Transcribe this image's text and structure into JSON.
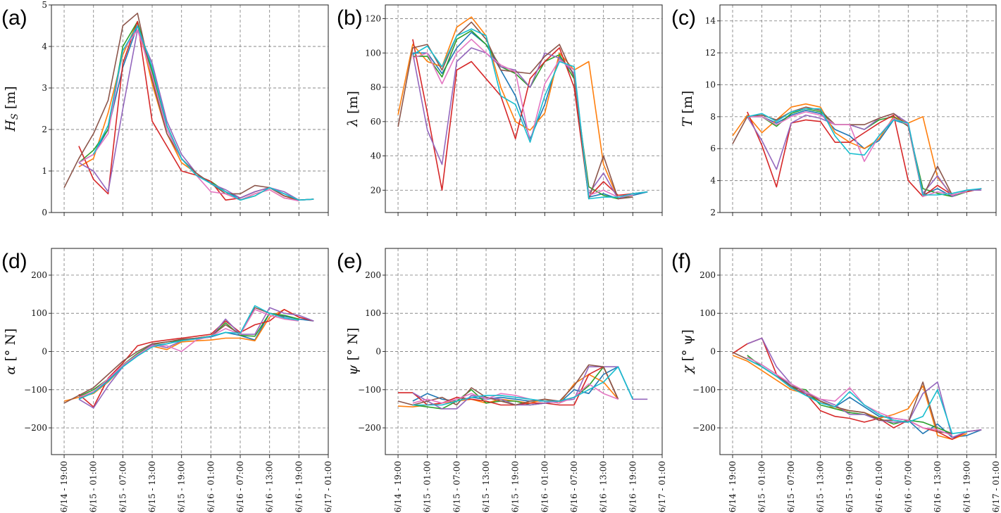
{
  "colors": [
    "#1f77b4",
    "#ff7f0e",
    "#2ca02c",
    "#d62728",
    "#9467bd",
    "#8c564b",
    "#e377c2",
    "#17becf"
  ],
  "x_tick_labels": [
    "06/14 - 19:00",
    "06/15 - 01:00",
    "06/15 - 07:00",
    "06/15 - 13:00",
    "06/15 - 19:00",
    "06/16 - 01:00",
    "06/16 - 07:00",
    "06/16 - 13:00",
    "06/16 - 19:00",
    "06/17 - 01:00"
  ],
  "chart_data": [
    {
      "letter": "(a)",
      "type": "line",
      "ylabel": {
        "sym": "H",
        "sub": "S",
        "unit": " [m]"
      },
      "ylim": [
        0,
        5
      ],
      "yticks": [
        0,
        1,
        2,
        3,
        4,
        5
      ],
      "xlim": [
        "06/14 16:24",
        "06/17 01:00"
      ],
      "grid": true,
      "x": [
        "06/14 19:00",
        "06/14 22:00",
        "06/15 01:00",
        "06/15 04:00",
        "06/15 07:00",
        "06/15 10:00",
        "06/15 13:00",
        "06/15 16:00",
        "06/15 19:00",
        "06/15 22:00",
        "06/16 01:00",
        "06/16 04:00",
        "06/16 07:00",
        "06/16 10:00",
        "06/16 13:00",
        "06/16 16:00",
        "06/16 19:00",
        "06/16 22:00"
      ],
      "series": [
        [
          null,
          1.2,
          1.4,
          2.0,
          3.5,
          4.5,
          3.3,
          2.0,
          1.3,
          0.9,
          0.7,
          0.5,
          0.35,
          0.5,
          0.6,
          0.45,
          0.3,
          null
        ],
        [
          null,
          1.1,
          1.3,
          2.4,
          3.8,
          4.6,
          3.1,
          1.9,
          1.2,
          0.95,
          0.7,
          0.45,
          0.3,
          0.45,
          0.55,
          0.35,
          0.3,
          null
        ],
        [
          null,
          1.2,
          1.5,
          2.0,
          4.0,
          4.6,
          3.4,
          2.1,
          1.3,
          0.9,
          0.75,
          0.5,
          0.3,
          0.4,
          0.6,
          0.4,
          0.3,
          0.32
        ],
        [
          null,
          1.6,
          0.8,
          0.45,
          3.6,
          4.6,
          2.2,
          1.6,
          1.0,
          0.9,
          0.75,
          0.3,
          0.35,
          0.5,
          0.6,
          0.4,
          0.3,
          0.32
        ],
        [
          null,
          1.2,
          1.0,
          0.5,
          2.5,
          4.4,
          3.6,
          2.2,
          1.4,
          0.95,
          0.7,
          0.55,
          0.35,
          0.5,
          0.6,
          0.5,
          0.3,
          0.32
        ],
        [
          0.6,
          1.3,
          1.9,
          2.7,
          4.5,
          4.8,
          3.2,
          1.9,
          1.3,
          0.95,
          0.7,
          0.45,
          0.45,
          0.65,
          0.6,
          0.4,
          0.3,
          null
        ],
        [
          null,
          1.2,
          1.4,
          1.9,
          3.9,
          4.4,
          3.3,
          2.0,
          1.3,
          0.9,
          0.5,
          0.45,
          0.3,
          0.45,
          0.55,
          0.35,
          0.28,
          null
        ],
        [
          null,
          null,
          1.4,
          2.1,
          3.9,
          4.5,
          3.5,
          2.1,
          1.3,
          0.9,
          0.7,
          0.5,
          0.3,
          0.4,
          0.6,
          0.45,
          0.3,
          0.32
        ]
      ]
    },
    {
      "letter": "(b)",
      "type": "line",
      "ylabel": {
        "sym": "λ",
        "sub": "",
        "unit": " [m]"
      },
      "ylim": [
        7,
        128
      ],
      "yticks": [
        20,
        40,
        60,
        80,
        100,
        120
      ],
      "xlim": [
        "06/14 16:24",
        "06/17 01:00"
      ],
      "grid": true,
      "x": [
        "06/14 19:00",
        "06/14 22:00",
        "06/15 01:00",
        "06/15 04:00",
        "06/15 07:00",
        "06/15 10:00",
        "06/15 13:00",
        "06/15 16:00",
        "06/15 19:00",
        "06/15 22:00",
        "06/16 01:00",
        "06/16 04:00",
        "06/16 07:00",
        "06/16 10:00",
        "06/16 13:00",
        "06/16 16:00",
        "06/16 19:00",
        "06/16 22:00"
      ],
      "series": [
        [
          null,
          100,
          100,
          88,
          103,
          112,
          105,
          90,
          75,
          50,
          70,
          98,
          88,
          16,
          18,
          15,
          17,
          19
        ],
        [
          64,
          105,
          95,
          92,
          115,
          121,
          110,
          80,
          60,
          55,
          65,
          100,
          90,
          95,
          35,
          15,
          17,
          null
        ],
        [
          null,
          98,
          98,
          86,
          108,
          113,
          105,
          92,
          88,
          80,
          95,
          99,
          85,
          22,
          17,
          15,
          17,
          null
        ],
        [
          null,
          108,
          65,
          20,
          90,
          95,
          85,
          75,
          50,
          85,
          95,
          103,
          80,
          16,
          25,
          17,
          18,
          19
        ],
        [
          null,
          100,
          55,
          35,
          95,
          103,
          100,
          92,
          90,
          80,
          100,
          97,
          88,
          18,
          30,
          15,
          18,
          19
        ],
        [
          57,
          103,
          105,
          90,
          110,
          118,
          108,
          90,
          89,
          88,
          98,
          105,
          86,
          15,
          40,
          15,
          16,
          null
        ],
        [
          null,
          97,
          100,
          82,
          100,
          108,
          100,
          93,
          89,
          48,
          82,
          96,
          90,
          17,
          20,
          16,
          17,
          null
        ],
        [
          null,
          99,
          104,
          92,
          110,
          114,
          110,
          75,
          70,
          48,
          75,
          95,
          92,
          15,
          16,
          16,
          18,
          19
        ]
      ]
    },
    {
      "letter": "(c)",
      "type": "line",
      "ylabel": {
        "sym": "T",
        "sub": "",
        "unit": " [m]"
      },
      "ylim": [
        2,
        15
      ],
      "yticks": [
        2,
        4,
        6,
        8,
        10,
        12,
        14
      ],
      "xlim": [
        "06/14 16:24",
        "06/17 01:00"
      ],
      "grid": true,
      "x": [
        "06/14 19:00",
        "06/14 22:00",
        "06/15 01:00",
        "06/15 04:00",
        "06/15 07:00",
        "06/15 10:00",
        "06/15 13:00",
        "06/15 16:00",
        "06/15 19:00",
        "06/15 22:00",
        "06/16 01:00",
        "06/16 04:00",
        "06/16 07:00",
        "06/16 10:00",
        "06/16 13:00",
        "06/16 16:00",
        "06/16 19:00",
        "06/16 22:00"
      ],
      "series": [
        [
          null,
          8.0,
          8.0,
          7.6,
          8.1,
          8.4,
          8.2,
          7.2,
          6.8,
          6.0,
          6.5,
          7.8,
          7.5,
          3.1,
          3.5,
          3.0,
          3.3,
          3.5
        ],
        [
          6.8,
          8.1,
          7.0,
          7.8,
          8.6,
          8.8,
          8.6,
          7.0,
          6.4,
          6.0,
          6.6,
          8.0,
          7.6,
          8.0,
          4.2,
          3.1,
          3.3,
          null
        ],
        [
          null,
          8.0,
          8.0,
          7.4,
          8.2,
          8.5,
          8.3,
          7.5,
          7.5,
          7.2,
          7.8,
          8.0,
          7.4,
          3.5,
          3.2,
          3.0,
          3.3,
          null
        ],
        [
          null,
          8.3,
          6.2,
          3.6,
          7.6,
          7.8,
          7.7,
          6.4,
          6.4,
          7.0,
          7.6,
          8.1,
          4.0,
          3.0,
          3.7,
          3.1,
          3.3,
          3.5
        ],
        [
          null,
          8.0,
          6.5,
          4.7,
          7.6,
          8.1,
          7.9,
          7.5,
          7.5,
          7.2,
          7.9,
          8.2,
          7.6,
          3.2,
          4.3,
          3.0,
          3.4,
          3.4
        ],
        [
          6.3,
          8.0,
          8.1,
          7.8,
          8.3,
          8.6,
          8.4,
          7.5,
          7.5,
          7.5,
          7.9,
          8.2,
          7.4,
          3.0,
          4.9,
          3.1,
          3.3,
          null
        ],
        [
          null,
          8.0,
          8.0,
          7.5,
          8.0,
          8.3,
          8.1,
          7.5,
          7.5,
          5.2,
          6.8,
          7.9,
          7.5,
          3.0,
          3.3,
          3.1,
          3.3,
          null
        ],
        [
          null,
          8.0,
          8.2,
          7.7,
          8.3,
          8.5,
          8.5,
          6.8,
          5.7,
          5.6,
          6.8,
          7.8,
          7.6,
          3.1,
          3.1,
          3.2,
          3.4,
          3.5
        ]
      ]
    },
    {
      "letter": "(d)",
      "type": "line",
      "ylabel": {
        "sym": "α",
        "sub": "",
        "unit": " [° N]"
      },
      "ylim": [
        -270,
        270
      ],
      "yticks": [
        -200,
        -100,
        0,
        100,
        200
      ],
      "xlim": [
        "06/14 16:24",
        "06/17 01:00"
      ],
      "grid": true,
      "x": [
        "06/14 19:00",
        "06/14 22:00",
        "06/15 01:00",
        "06/15 04:00",
        "06/15 07:00",
        "06/15 10:00",
        "06/15 13:00",
        "06/15 16:00",
        "06/15 19:00",
        "06/15 22:00",
        "06/16 01:00",
        "06/16 04:00",
        "06/16 07:00",
        "06/16 10:00",
        "06/16 13:00",
        "06/16 16:00",
        "06/16 19:00",
        "06/16 22:00"
      ],
      "series": [
        [
          null,
          -122,
          -105,
          -75,
          -38,
          -8,
          15,
          20,
          30,
          33,
          38,
          50,
          42,
          30,
          100,
          92,
          85,
          80
        ],
        [
          -130,
          -120,
          -110,
          -80,
          -40,
          -10,
          14,
          5,
          25,
          28,
          30,
          35,
          35,
          28,
          90,
          110,
          90,
          null
        ],
        [
          null,
          -118,
          -100,
          -72,
          -35,
          -5,
          18,
          25,
          30,
          35,
          40,
          75,
          42,
          40,
          100,
          95,
          85,
          null
        ],
        [
          null,
          -112,
          -145,
          -70,
          -30,
          15,
          25,
          30,
          35,
          40,
          45,
          80,
          50,
          70,
          80,
          110,
          90,
          80
        ],
        [
          null,
          -125,
          -148,
          -90,
          -40,
          -10,
          18,
          10,
          28,
          35,
          38,
          85,
          45,
          45,
          115,
          100,
          95,
          80
        ],
        [
          -135,
          -115,
          -95,
          -60,
          -25,
          0,
          20,
          25,
          32,
          35,
          40,
          70,
          45,
          115,
          100,
          90,
          null,
          null
        ],
        [
          null,
          -120,
          -105,
          -72,
          -36,
          -8,
          15,
          15,
          0,
          30,
          40,
          60,
          45,
          110,
          95,
          85,
          80,
          null
        ],
        [
          null,
          -125,
          -108,
          -78,
          -40,
          -12,
          12,
          20,
          28,
          33,
          40,
          50,
          48,
          120,
          100,
          88,
          82,
          null
        ]
      ]
    },
    {
      "letter": "(e)",
      "type": "line",
      "ylabel": {
        "sym": "ψ",
        "sub": "",
        "unit": " [° N]"
      },
      "ylim": [
        -270,
        270
      ],
      "yticks": [
        -200,
        -100,
        0,
        100,
        200
      ],
      "xlim": [
        "06/14 16:24",
        "06/17 01:00"
      ],
      "grid": true,
      "x": [
        "06/14 19:00",
        "06/14 22:00",
        "06/15 01:00",
        "06/15 04:00",
        "06/15 07:00",
        "06/15 10:00",
        "06/15 13:00",
        "06/15 16:00",
        "06/15 19:00",
        "06/15 22:00",
        "06/16 01:00",
        "06/16 04:00",
        "06/16 07:00",
        "06/16 10:00",
        "06/16 13:00",
        "06/16 16:00",
        "06/16 19:00",
        "06/16 22:00"
      ],
      "series": [
        [
          null,
          -130,
          -110,
          -125,
          -130,
          -120,
          -125,
          -120,
          -125,
          -130,
          -130,
          -135,
          -100,
          -110,
          -60,
          -40,
          -125,
          null
        ],
        [
          -143,
          -145,
          -140,
          -135,
          -130,
          -125,
          -135,
          -125,
          -130,
          -135,
          -125,
          -135,
          -85,
          -60,
          -80,
          -125,
          null,
          null
        ],
        [
          null,
          -140,
          -145,
          -150,
          -130,
          -100,
          -135,
          -130,
          -130,
          -140,
          -135,
          -130,
          -120,
          -90,
          -40,
          -125,
          null,
          null
        ],
        [
          -108,
          -108,
          -140,
          -135,
          -120,
          -125,
          -130,
          -140,
          -140,
          -135,
          -135,
          -140,
          -140,
          -60,
          -40,
          -125,
          null,
          null
        ],
        [
          null,
          -108,
          -130,
          -150,
          -150,
          -115,
          -120,
          -125,
          -140,
          -140,
          -135,
          -130,
          -125,
          -40,
          -40,
          -40,
          -125,
          -125
        ],
        [
          -130,
          -140,
          -130,
          -120,
          -140,
          -95,
          -120,
          -130,
          -140,
          -130,
          -125,
          -130,
          -90,
          -35,
          -40,
          -125,
          null,
          null
        ],
        [
          null,
          -135,
          -125,
          -135,
          -125,
          -110,
          -125,
          -110,
          -115,
          -125,
          -130,
          -135,
          -120,
          -85,
          -110,
          -125,
          null,
          null
        ],
        [
          null,
          -140,
          -140,
          -140,
          -130,
          -120,
          -115,
          -115,
          -120,
          -125,
          -130,
          -130,
          -120,
          -100,
          -80,
          -40,
          -125,
          null
        ]
      ]
    },
    {
      "letter": "(f)",
      "type": "line",
      "ylabel": {
        "sym": "χ",
        "sub": "",
        "unit": " [° ψ]"
      },
      "ylim": [
        -270,
        270
      ],
      "yticks": [
        -200,
        -100,
        0,
        100,
        200
      ],
      "xlim": [
        "06/14 16:24",
        "06/17 01:00"
      ],
      "grid": true,
      "x": [
        "06/14 19:00",
        "06/14 22:00",
        "06/15 01:00",
        "06/15 04:00",
        "06/15 07:00",
        "06/15 10:00",
        "06/15 13:00",
        "06/15 16:00",
        "06/15 19:00",
        "06/15 22:00",
        "06/16 01:00",
        "06/16 04:00",
        "06/16 07:00",
        "06/16 10:00",
        "06/16 13:00",
        "06/16 16:00",
        "06/16 19:00",
        "06/16 22:00"
      ],
      "series": [
        [
          null,
          -15,
          -35,
          -60,
          -90,
          -115,
          -130,
          -145,
          -120,
          -145,
          -170,
          -175,
          -180,
          -215,
          -190,
          -225,
          -220,
          -205
        ],
        [
          -10,
          -25,
          -50,
          -75,
          -100,
          -110,
          -130,
          -150,
          -155,
          -160,
          -175,
          -165,
          -150,
          -90,
          -220,
          -230,
          -215,
          null
        ],
        [
          null,
          -10,
          -40,
          -65,
          -95,
          -100,
          -140,
          -150,
          -160,
          -165,
          -175,
          -190,
          -180,
          -185,
          -200,
          -215,
          null,
          null
        ],
        [
          -5,
          20,
          35,
          -60,
          -95,
          -110,
          -155,
          -170,
          -175,
          -185,
          -175,
          -200,
          -180,
          -200,
          -210,
          -230,
          -210,
          -205
        ],
        [
          null,
          20,
          35,
          -40,
          -85,
          -110,
          -125,
          -140,
          -165,
          -165,
          -180,
          -185,
          -185,
          -110,
          -80,
          -225,
          -210,
          -205
        ],
        [
          -2,
          -20,
          -40,
          -65,
          -90,
          -105,
          -130,
          -145,
          -155,
          -160,
          -180,
          -180,
          -185,
          -80,
          -210,
          -215,
          null,
          null
        ],
        [
          null,
          -15,
          -35,
          -60,
          -85,
          -105,
          -125,
          -130,
          -95,
          -140,
          -160,
          -175,
          -180,
          -200,
          -205,
          -220,
          null,
          null
        ],
        [
          null,
          -20,
          -40,
          -65,
          -95,
          -115,
          -135,
          -145,
          -105,
          -140,
          -165,
          -180,
          -185,
          -170,
          -100,
          -215,
          -210,
          null
        ]
      ]
    }
  ]
}
